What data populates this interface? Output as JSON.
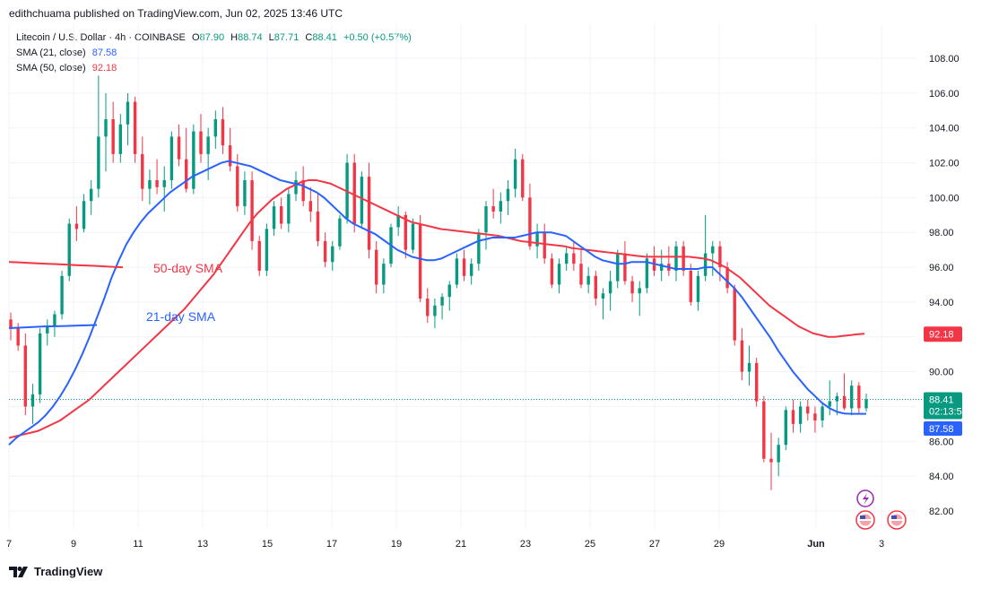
{
  "header": {
    "published": "edithchuama published on TradingView.com, Jun 02, 2025 13:46 UTC"
  },
  "legend": {
    "symbol": "Litecoin / U.S. Dollar · 4h · COINBASE",
    "o_label": "O",
    "o_value": "87.90",
    "h_label": "H",
    "h_value": "88.74",
    "l_label": "L",
    "l_value": "87.71",
    "c_label": "C",
    "c_value": "88.41",
    "change": "+0.50 (+0.57%)",
    "sma21_label": "SMA (21, close)",
    "sma21_value": "87.58",
    "sma50_label": "SMA (50, close)",
    "sma50_value": "92.18"
  },
  "footer": {
    "brand": "TradingView"
  },
  "colors": {
    "up": "#089981",
    "down": "#f23645",
    "sma21": "#2962ff",
    "sma50": "#f23645",
    "grid": "#f0f3fa"
  },
  "chart_data": {
    "type": "candlestick",
    "timeframe": "4h",
    "ylim": [
      80.5,
      110.5
    ],
    "y_ticks": [
      "82.00",
      "84.00",
      "86.00",
      "88.00",
      "90.00",
      "92.00",
      "94.00",
      "96.00",
      "98.00",
      "100.00",
      "102.00",
      "104.00",
      "106.00",
      "108.00"
    ],
    "x_ticks": [
      "7",
      "9",
      "11",
      "13",
      "15",
      "17",
      "19",
      "21",
      "23",
      "25",
      "27",
      "29",
      "Jun",
      "3"
    ],
    "annotations": [
      {
        "text": "50-day SMA",
        "color": "#f23645"
      },
      {
        "text": "21-day SMA",
        "color": "#2962ff"
      }
    ],
    "price_labels": {
      "last": "88.41",
      "countdown": "02:13:50",
      "sma21": "87.58",
      "sma50": "92.18"
    },
    "ohlc": [
      [
        93.0,
        93.4,
        91.8,
        92.5
      ],
      [
        92.5,
        92.8,
        91.2,
        91.5
      ],
      [
        91.5,
        92.2,
        87.5,
        88.0
      ],
      [
        88.0,
        89.3,
        87.0,
        88.7
      ],
      [
        88.7,
        92.5,
        88.2,
        92.2
      ],
      [
        92.2,
        93.0,
        91.5,
        92.6
      ],
      [
        92.6,
        93.5,
        92.0,
        93.3
      ],
      [
        93.3,
        95.8,
        93.0,
        95.5
      ],
      [
        95.5,
        98.8,
        95.2,
        98.5
      ],
      [
        98.5,
        99.5,
        97.5,
        98.2
      ],
      [
        98.2,
        100.2,
        98.0,
        99.8
      ],
      [
        99.8,
        101.0,
        99.0,
        100.5
      ],
      [
        100.5,
        107.0,
        100.0,
        103.5
      ],
      [
        103.5,
        106.0,
        101.5,
        104.5
      ],
      [
        104.5,
        105.5,
        102.0,
        102.5
      ],
      [
        102.5,
        104.8,
        102.0,
        104.2
      ],
      [
        104.2,
        106.0,
        103.0,
        105.5
      ],
      [
        105.5,
        105.8,
        102.0,
        102.5
      ],
      [
        102.5,
        103.5,
        99.8,
        100.5
      ],
      [
        100.5,
        101.6,
        99.6,
        101.0
      ],
      [
        101.0,
        102.2,
        100.2,
        100.6
      ],
      [
        100.6,
        101.8,
        99.2,
        101.0
      ],
      [
        101.0,
        103.8,
        100.5,
        103.5
      ],
      [
        103.5,
        104.2,
        101.8,
        102.2
      ],
      [
        102.2,
        104.0,
        100.3,
        100.5
      ],
      [
        100.5,
        104.2,
        100.2,
        103.8
      ],
      [
        103.8,
        104.8,
        102.0,
        102.5
      ],
      [
        102.5,
        104.0,
        101.0,
        103.5
      ],
      [
        103.5,
        105.0,
        102.8,
        104.5
      ],
      [
        104.5,
        105.2,
        102.5,
        103.0
      ],
      [
        103.0,
        104.0,
        101.5,
        101.8
      ],
      [
        101.8,
        102.5,
        99.2,
        99.5
      ],
      [
        99.5,
        101.5,
        99.0,
        101.0
      ],
      [
        101.0,
        101.5,
        97.0,
        97.5
      ],
      [
        97.5,
        97.8,
        95.5,
        95.8
      ],
      [
        95.8,
        98.5,
        95.5,
        98.2
      ],
      [
        98.2,
        99.8,
        97.8,
        99.5
      ],
      [
        99.5,
        100.0,
        98.2,
        98.5
      ],
      [
        98.5,
        100.5,
        98.0,
        100.2
      ],
      [
        100.2,
        101.5,
        99.8,
        101.0
      ],
      [
        101.0,
        101.8,
        99.5,
        99.8
      ],
      [
        99.8,
        100.6,
        98.6,
        99.2
      ],
      [
        99.2,
        100.2,
        97.2,
        97.5
      ],
      [
        97.5,
        98.0,
        96.0,
        96.3
      ],
      [
        96.3,
        97.5,
        95.8,
        97.2
      ],
      [
        97.2,
        99.0,
        97.0,
        98.8
      ],
      [
        98.8,
        102.5,
        98.5,
        102.0
      ],
      [
        102.0,
        102.5,
        98.0,
        98.5
      ],
      [
        98.5,
        101.5,
        98.2,
        101.2
      ],
      [
        101.2,
        102.0,
        96.5,
        97.0
      ],
      [
        97.0,
        97.5,
        94.5,
        95.0
      ],
      [
        95.0,
        96.5,
        94.5,
        96.2
      ],
      [
        96.2,
        98.5,
        96.0,
        98.3
      ],
      [
        98.3,
        99.5,
        97.8,
        99.0
      ],
      [
        99.0,
        99.2,
        96.5,
        97.0
      ],
      [
        97.0,
        98.8,
        96.8,
        98.5
      ],
      [
        98.5,
        99.0,
        94.0,
        94.2
      ],
      [
        94.2,
        94.8,
        92.8,
        93.2
      ],
      [
        93.2,
        94.2,
        92.5,
        93.8
      ],
      [
        93.8,
        94.5,
        93.0,
        94.3
      ],
      [
        94.3,
        95.2,
        93.5,
        95.0
      ],
      [
        95.0,
        96.8,
        94.8,
        96.5
      ],
      [
        96.5,
        97.0,
        95.2,
        95.5
      ],
      [
        95.5,
        96.5,
        95.0,
        96.2
      ],
      [
        96.2,
        98.2,
        95.8,
        98.0
      ],
      [
        98.0,
        99.8,
        97.0,
        99.5
      ],
      [
        99.5,
        100.5,
        98.8,
        99.2
      ],
      [
        99.2,
        100.3,
        98.5,
        99.8
      ],
      [
        99.8,
        101.0,
        99.0,
        100.5
      ],
      [
        100.5,
        102.8,
        100.0,
        102.2
      ],
      [
        102.2,
        102.5,
        99.8,
        100.0
      ],
      [
        100.0,
        100.8,
        97.0,
        97.2
      ],
      [
        97.2,
        98.5,
        96.5,
        98.0
      ],
      [
        98.0,
        98.5,
        96.2,
        96.5
      ],
      [
        96.5,
        96.8,
        94.8,
        95.0
      ],
      [
        95.0,
        96.5,
        94.5,
        96.2
      ],
      [
        96.2,
        97.2,
        95.8,
        96.8
      ],
      [
        96.8,
        97.5,
        95.8,
        96.2
      ],
      [
        96.2,
        97.0,
        94.8,
        95.0
      ],
      [
        95.0,
        96.0,
        94.5,
        95.5
      ],
      [
        95.5,
        95.8,
        93.8,
        94.2
      ],
      [
        94.2,
        94.8,
        93.0,
        94.5
      ],
      [
        94.5,
        95.8,
        93.5,
        95.2
      ],
      [
        95.2,
        97.0,
        94.8,
        96.8
      ],
      [
        96.8,
        97.5,
        95.0,
        95.2
      ],
      [
        95.2,
        95.5,
        94.0,
        94.5
      ],
      [
        94.5,
        95.2,
        93.2,
        94.8
      ],
      [
        94.8,
        96.8,
        94.5,
        96.5
      ],
      [
        96.5,
        97.2,
        95.5,
        95.8
      ],
      [
        95.8,
        97.0,
        95.2,
        96.2
      ],
      [
        96.2,
        97.2,
        95.5,
        95.8
      ],
      [
        95.8,
        97.5,
        95.2,
        97.2
      ],
      [
        97.2,
        97.5,
        95.5,
        95.8
      ],
      [
        95.8,
        96.2,
        93.8,
        94.0
      ],
      [
        94.0,
        95.8,
        93.5,
        95.5
      ],
      [
        95.5,
        99.0,
        95.2,
        96.8
      ],
      [
        96.8,
        97.5,
        95.5,
        97.2
      ],
      [
        97.2,
        97.5,
        95.2,
        96.0
      ],
      [
        96.0,
        96.3,
        94.5,
        94.8
      ],
      [
        94.8,
        95.0,
        91.5,
        91.8
      ],
      [
        91.8,
        92.5,
        89.5,
        90.0
      ],
      [
        90.0,
        91.5,
        89.2,
        90.5
      ],
      [
        90.5,
        90.8,
        88.0,
        88.3
      ],
      [
        88.3,
        88.6,
        84.8,
        85.0
      ],
      [
        85.0,
        86.5,
        83.2,
        84.8
      ],
      [
        84.8,
        86.2,
        84.0,
        85.8
      ],
      [
        85.8,
        88.0,
        85.5,
        87.8
      ],
      [
        87.8,
        88.4,
        86.5,
        87.0
      ],
      [
        87.0,
        88.3,
        86.5,
        88.0
      ],
      [
        88.0,
        88.4,
        87.2,
        87.6
      ],
      [
        87.6,
        88.0,
        86.5,
        87.2
      ],
      [
        87.2,
        88.2,
        86.8,
        88.0
      ],
      [
        88.0,
        89.5,
        87.5,
        88.3
      ],
      [
        88.3,
        88.8,
        87.5,
        88.6
      ],
      [
        88.6,
        89.9,
        87.8,
        87.9
      ],
      [
        87.9,
        89.5,
        87.5,
        89.2
      ],
      [
        89.2,
        89.4,
        87.6,
        87.9
      ],
      [
        87.9,
        88.74,
        87.71,
        88.41
      ]
    ],
    "sma50": {
      "start_index": 0,
      "values": [
        96.3,
        96.28,
        96.25,
        96.22,
        96.2,
        96.18,
        96.15,
        96.12,
        96.1,
        96.08,
        96.05,
        96.02,
        96.0
      ]
    },
    "sma50_main": {
      "start_index": 0,
      "values": [
        86.2,
        86.3,
        86.4,
        86.5,
        86.6,
        86.8,
        87.0,
        87.2,
        87.5,
        87.8,
        88.1,
        88.4,
        88.8,
        89.2,
        89.6,
        90.0,
        90.4,
        90.8,
        91.2,
        91.6,
        92.0,
        92.4,
        92.8,
        93.2,
        93.6,
        94.1,
        94.6,
        95.1,
        95.6,
        96.2,
        96.8,
        97.4,
        98.0,
        98.6,
        99.1,
        99.5,
        99.9,
        100.2,
        100.5,
        100.7,
        100.9,
        101.0,
        101.0,
        100.9,
        100.8,
        100.6,
        100.4,
        100.2,
        100.0,
        99.8,
        99.6,
        99.4,
        99.2,
        99.0,
        98.8,
        98.6,
        98.5,
        98.4,
        98.3,
        98.2,
        98.15,
        98.1,
        98.05,
        98.0,
        97.95,
        97.9,
        97.85,
        97.8,
        97.7,
        97.6,
        97.5,
        97.45,
        97.4,
        97.35,
        97.3,
        97.25,
        97.2,
        97.1,
        97.05,
        97.0,
        96.95,
        96.9,
        96.85,
        96.8,
        96.75,
        96.7,
        96.65,
        96.6,
        96.6,
        96.6,
        96.6,
        96.6,
        96.6,
        96.6,
        96.55,
        96.5,
        96.4,
        96.2,
        96.0,
        95.7,
        95.4,
        95.0,
        94.6,
        94.2,
        93.8,
        93.5,
        93.2,
        92.9,
        92.6,
        92.4,
        92.2,
        92.1,
        92.0,
        92.0,
        92.05,
        92.1,
        92.15,
        92.18
      ]
    },
    "sma21": {
      "start_index": 0,
      "values": [
        85.8,
        86.2,
        86.5,
        86.8,
        87.1,
        87.5,
        88.0,
        88.6,
        89.3,
        90.1,
        91.0,
        92.0,
        93.1,
        94.2,
        95.4,
        96.4,
        97.3,
        98.0,
        98.6,
        99.1,
        99.5,
        99.9,
        100.3,
        100.6,
        100.9,
        101.2,
        101.4,
        101.6,
        101.8,
        102.0,
        102.1,
        102.0,
        101.9,
        101.8,
        101.6,
        101.4,
        101.2,
        101.0,
        100.9,
        100.8,
        100.7,
        100.5,
        100.3,
        100.0,
        99.6,
        99.2,
        98.8,
        98.5,
        98.3,
        98.1,
        97.9,
        97.6,
        97.3,
        97.0,
        96.8,
        96.6,
        96.5,
        96.4,
        96.4,
        96.5,
        96.7,
        96.9,
        97.1,
        97.3,
        97.5,
        97.6,
        97.7,
        97.7,
        97.7,
        97.7,
        97.8,
        97.9,
        98.0,
        98.0,
        98.0,
        97.9,
        97.8,
        97.5,
        97.2,
        96.9,
        96.6,
        96.4,
        96.3,
        96.2,
        96.2,
        96.3,
        96.3,
        96.3,
        96.2,
        96.1,
        96.0,
        95.9,
        95.9,
        95.9,
        95.9,
        96.0,
        96.0,
        95.6,
        95.2,
        94.8,
        94.3,
        93.7,
        93.1,
        92.5,
        91.9,
        91.2,
        90.6,
        90.0,
        89.5,
        89.0,
        88.6,
        88.2,
        87.9,
        87.7,
        87.6,
        87.58,
        87.58,
        87.58
      ]
    },
    "sma21_head": {
      "values": [
        92.5,
        92.55,
        92.6,
        92.62,
        92.65,
        92.68
      ]
    }
  }
}
